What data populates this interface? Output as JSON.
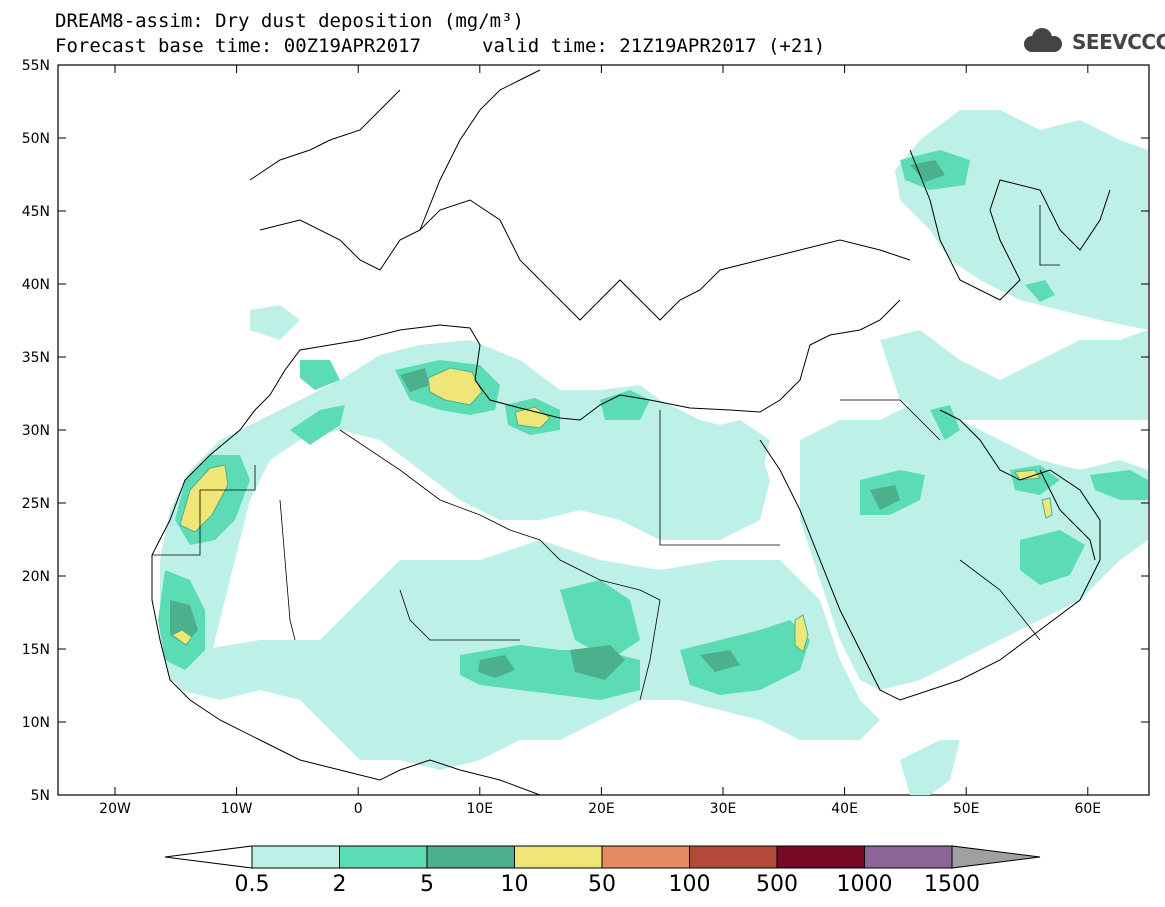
{
  "header": {
    "title": "DREAM8-assim: Dry dust deposition (mg/m³)",
    "base_time": "Forecast base time: 00Z19APR2017",
    "valid_time": "valid time: 21Z19APR2017 (+21)",
    "logo_text": "SEEVCCC"
  },
  "axes": {
    "lat_labels": [
      "55N",
      "50N",
      "45N",
      "40N",
      "35N",
      "30N",
      "25N",
      "20N",
      "15N",
      "10N",
      "5N"
    ],
    "lon_labels": [
      "20W",
      "10W",
      "0",
      "10E",
      "20E",
      "30E",
      "40E",
      "50E",
      "60E"
    ]
  },
  "colorbar": {
    "labels": [
      "0.5",
      "2",
      "5",
      "10",
      "50",
      "100",
      "500",
      "1000",
      "1500"
    ],
    "colors": [
      "#bdf0e6",
      "#5cdcb4",
      "#4cb08c",
      "#f0e678",
      "#e68c64",
      "#b44a3c",
      "#780a28",
      "#8c6496",
      "#a0a0a0"
    ]
  }
}
